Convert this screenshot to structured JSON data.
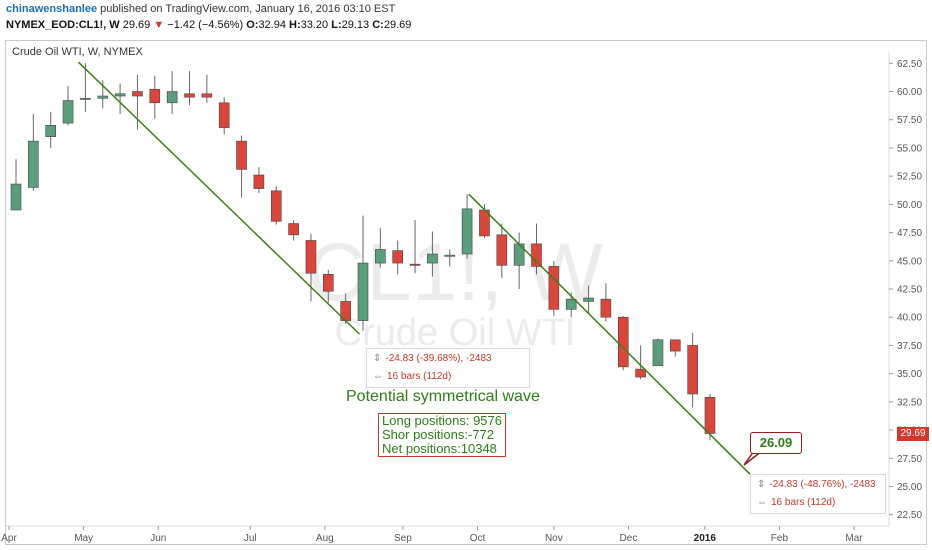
{
  "header": {
    "user": "chinawenshanlee",
    "published": "published on TradingView.com, January 16, 2016 03:10 EST",
    "symbol": "NYMEX_EOD:CL1!, W",
    "last": "29.69",
    "change": "−1.42 (−4.56%)",
    "o_label": "O:",
    "o_val": "32.94",
    "h_label": "H:",
    "h_val": "33.20",
    "l_label": "L:",
    "l_val": "29.13",
    "c_label": "C:",
    "c_val": "29.69"
  },
  "chart_title": "Crude Oil WTI, W, NYMEX",
  "watermark": {
    "line1": "CL1!, W",
    "line2": "Crude Oil WTI"
  },
  "annotations": {
    "wave": "Potential symmetrical wave",
    "positions": [
      "Long positions: 9576",
      "Shor positions:-772",
      "Net positions:10348"
    ],
    "measure1": {
      "range": "-24.83 (-39.68%), -2483",
      "bars": "16 bars (112d)"
    },
    "measure2": {
      "range": "-24.83 (-48.76%), -2483",
      "bars": "16 bars (112d)"
    },
    "target": "26.09",
    "price_tag": "29.69"
  },
  "colors": {
    "up": "#5b9e7b",
    "down": "#d9463a",
    "trend": "#3f7d16",
    "axis": "#555555"
  },
  "chart_data": {
    "type": "candlestick",
    "title": "Crude Oil WTI, W, NYMEX",
    "ylim": [
      21.5,
      63.5
    ],
    "y_ticks": [
      "62.50",
      "60.00",
      "57.50",
      "55.00",
      "52.50",
      "50.00",
      "47.50",
      "45.00",
      "42.50",
      "40.00",
      "37.50",
      "35.00",
      "32.50",
      "30.00",
      "27.50",
      "25.00",
      "22.50"
    ],
    "x_ticks": [
      {
        "label": "Apr",
        "week": -0.4
      },
      {
        "label": "May",
        "week": 3.9
      },
      {
        "label": "Jun",
        "week": 8.2
      },
      {
        "label": "Jul",
        "week": 13.5
      },
      {
        "label": "Aug",
        "week": 17.8
      },
      {
        "label": "Sep",
        "week": 22.3
      },
      {
        "label": "Oct",
        "week": 26.6
      },
      {
        "label": "Nov",
        "week": 31.0
      },
      {
        "label": "Dec",
        "week": 35.3
      },
      {
        "label": "2016",
        "week": 39.7,
        "bold": true
      },
      {
        "label": "Feb",
        "week": 44.0
      },
      {
        "label": "Mar",
        "week": 48.3
      }
    ],
    "candles": [
      {
        "o": 49.5,
        "h": 54.0,
        "l": 49.5,
        "c": 51.8
      },
      {
        "o": 51.5,
        "h": 58.0,
        "l": 51.2,
        "c": 55.6
      },
      {
        "o": 56.0,
        "h": 58.2,
        "l": 55.0,
        "c": 57.0
      },
      {
        "o": 57.2,
        "h": 60.5,
        "l": 57.0,
        "c": 59.2
      },
      {
        "o": 59.3,
        "h": 62.5,
        "l": 58.2,
        "c": 59.4
      },
      {
        "o": 59.4,
        "h": 61.0,
        "l": 58.5,
        "c": 59.6
      },
      {
        "o": 59.6,
        "h": 60.7,
        "l": 58.0,
        "c": 59.8
      },
      {
        "o": 60.0,
        "h": 61.5,
        "l": 56.6,
        "c": 59.6
      },
      {
        "o": 60.2,
        "h": 61.4,
        "l": 57.6,
        "c": 59.0
      },
      {
        "o": 59.0,
        "h": 61.8,
        "l": 58.0,
        "c": 60.0
      },
      {
        "o": 59.8,
        "h": 61.8,
        "l": 58.8,
        "c": 59.5
      },
      {
        "o": 59.8,
        "h": 61.5,
        "l": 59.0,
        "c": 59.5
      },
      {
        "o": 59.0,
        "h": 59.5,
        "l": 56.2,
        "c": 56.8
      },
      {
        "o": 55.6,
        "h": 56.1,
        "l": 50.6,
        "c": 53.1
      },
      {
        "o": 52.6,
        "h": 53.3,
        "l": 51.0,
        "c": 51.4
      },
      {
        "o": 51.2,
        "h": 51.6,
        "l": 48.2,
        "c": 48.5
      },
      {
        "o": 48.3,
        "h": 48.6,
        "l": 46.8,
        "c": 47.3
      },
      {
        "o": 46.8,
        "h": 47.4,
        "l": 41.4,
        "c": 43.9
      },
      {
        "o": 43.8,
        "h": 44.2,
        "l": 41.3,
        "c": 42.3
      },
      {
        "o": 41.4,
        "h": 42.1,
        "l": 39.4,
        "c": 39.7
      },
      {
        "o": 39.7,
        "h": 49.0,
        "l": 38.8,
        "c": 44.8
      },
      {
        "o": 44.8,
        "h": 47.9,
        "l": 44.4,
        "c": 46.0
      },
      {
        "o": 45.9,
        "h": 46.8,
        "l": 43.8,
        "c": 44.8
      },
      {
        "o": 44.7,
        "h": 48.6,
        "l": 43.9,
        "c": 44.6
      },
      {
        "o": 44.8,
        "h": 47.6,
        "l": 43.6,
        "c": 45.6
      },
      {
        "o": 45.4,
        "h": 46.0,
        "l": 44.5,
        "c": 45.5
      },
      {
        "o": 45.6,
        "h": 50.9,
        "l": 45.2,
        "c": 49.6
      },
      {
        "o": 49.5,
        "h": 50.0,
        "l": 47.0,
        "c": 47.2
      },
      {
        "o": 47.3,
        "h": 48.3,
        "l": 43.5,
        "c": 44.6
      },
      {
        "o": 44.6,
        "h": 47.5,
        "l": 42.5,
        "c": 46.5
      },
      {
        "o": 46.5,
        "h": 48.3,
        "l": 43.8,
        "c": 44.5
      },
      {
        "o": 44.5,
        "h": 45.0,
        "l": 40.1,
        "c": 40.7
      },
      {
        "o": 40.7,
        "h": 42.2,
        "l": 40.0,
        "c": 41.6
      },
      {
        "o": 41.4,
        "h": 42.8,
        "l": 40.3,
        "c": 41.7
      },
      {
        "o": 41.6,
        "h": 43.0,
        "l": 39.6,
        "c": 40.0
      },
      {
        "o": 40.0,
        "h": 40.1,
        "l": 35.3,
        "c": 35.6
      },
      {
        "o": 35.4,
        "h": 37.5,
        "l": 34.5,
        "c": 34.7
      },
      {
        "o": 35.7,
        "h": 38.1,
        "l": 35.7,
        "c": 38.0
      },
      {
        "o": 38.0,
        "h": 38.0,
        "l": 36.5,
        "c": 37.0
      },
      {
        "o": 37.5,
        "h": 38.6,
        "l": 32.0,
        "c": 33.2
      },
      {
        "o": 32.9,
        "h": 33.2,
        "l": 29.1,
        "c": 29.7
      }
    ],
    "trendlines": [
      {
        "from": {
          "week": 3.6,
          "price": 62.6
        },
        "to": {
          "week": 19.8,
          "price": 38.5
        }
      },
      {
        "from": {
          "week": 26.1,
          "price": 50.9
        },
        "to": {
          "week": 42.3,
          "price": 26.1
        }
      }
    ]
  }
}
